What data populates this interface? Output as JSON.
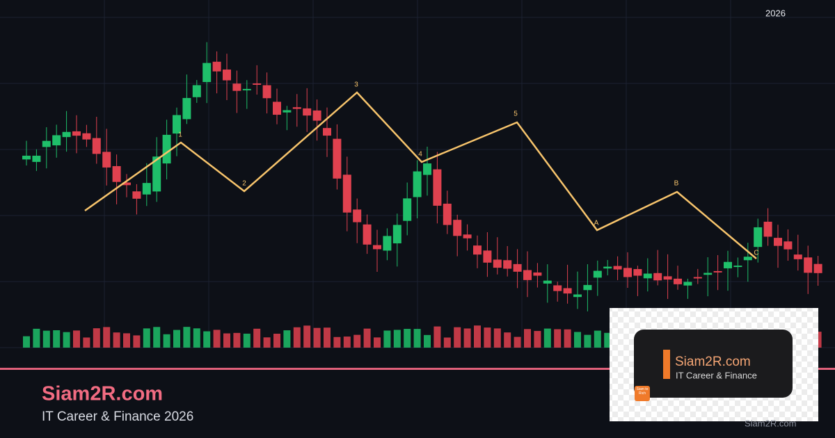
{
  "header": {
    "year": "2026"
  },
  "waves": {
    "labels": [
      "1",
      "2",
      "3",
      "4",
      "5",
      "A",
      "B",
      "C"
    ]
  },
  "footer": {
    "title": "Siam2R.com",
    "subtitle": "IT Career & Finance 2026"
  },
  "logo": {
    "title": "Siam2R.com",
    "subtitle": "IT Career & Finance",
    "icon_text": "Siam to Rich"
  },
  "watermark": "Siam2R.com"
}
